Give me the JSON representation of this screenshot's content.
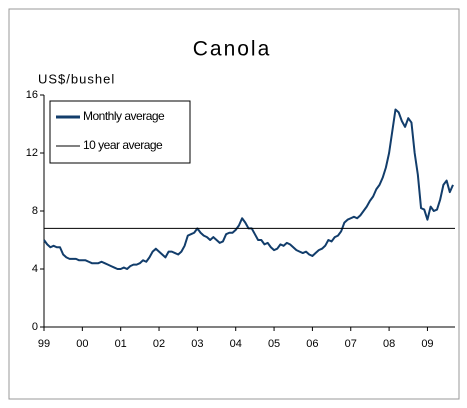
{
  "chart_data": {
    "type": "line",
    "title": "Canola",
    "y_label": "US$/bushel",
    "categories": [
      "99",
      null,
      null,
      null,
      null,
      null,
      null,
      null,
      null,
      null,
      null,
      null,
      "00",
      null,
      null,
      null,
      null,
      null,
      null,
      null,
      null,
      null,
      null,
      null,
      "01",
      null,
      null,
      null,
      null,
      null,
      null,
      null,
      null,
      null,
      null,
      null,
      "02",
      null,
      null,
      null,
      null,
      null,
      null,
      null,
      null,
      null,
      null,
      null,
      "03",
      null,
      null,
      null,
      null,
      null,
      null,
      null,
      null,
      null,
      null,
      null,
      "04",
      null,
      null,
      null,
      null,
      null,
      null,
      null,
      null,
      null,
      null,
      null,
      "05",
      null,
      null,
      null,
      null,
      null,
      null,
      null,
      null,
      null,
      null,
      null,
      "06",
      null,
      null,
      null,
      null,
      null,
      null,
      null,
      null,
      null,
      null,
      null,
      "07",
      null,
      null,
      null,
      null,
      null,
      null,
      null,
      null,
      null,
      null,
      null,
      "08",
      null,
      null,
      null,
      null,
      null,
      null,
      null,
      null,
      null,
      null,
      null,
      "09",
      null,
      null,
      null,
      null,
      null,
      null,
      null,
      null
    ],
    "series": [
      {
        "name": "Monthly average",
        "color": "#123d6b",
        "values": [
          6.0,
          5.7,
          5.5,
          5.6,
          5.5,
          5.5,
          5.0,
          4.8,
          4.7,
          4.7,
          4.7,
          4.6,
          4.6,
          4.6,
          4.5,
          4.4,
          4.4,
          4.4,
          4.5,
          4.4,
          4.3,
          4.2,
          4.1,
          4.0,
          4.0,
          4.1,
          4.0,
          4.2,
          4.3,
          4.3,
          4.4,
          4.6,
          4.5,
          4.8,
          5.2,
          5.4,
          5.2,
          5.0,
          4.8,
          5.2,
          5.2,
          5.1,
          5.0,
          5.2,
          5.6,
          6.3,
          6.4,
          6.5,
          6.8,
          6.5,
          6.3,
          6.2,
          6.0,
          6.2,
          6.0,
          5.8,
          5.9,
          6.4,
          6.5,
          6.5,
          6.7,
          7.0,
          7.5,
          7.2,
          6.8,
          6.8,
          6.4,
          6.0,
          6.0,
          5.7,
          5.8,
          5.5,
          5.3,
          5.4,
          5.7,
          5.6,
          5.8,
          5.7,
          5.5,
          5.3,
          5.2,
          5.1,
          5.2,
          5.0,
          4.9,
          5.1,
          5.3,
          5.4,
          5.6,
          6.0,
          5.9,
          6.2,
          6.3,
          6.6,
          7.2,
          7.4,
          7.5,
          7.6,
          7.5,
          7.7,
          8.0,
          8.3,
          8.7,
          9.0,
          9.5,
          9.8,
          10.3,
          11.0,
          12.0,
          13.5,
          15.0,
          14.8,
          14.2,
          13.8,
          14.4,
          14.1,
          12.0,
          10.5,
          8.2,
          8.1,
          7.4,
          8.3,
          8.0,
          8.1,
          8.8,
          9.8,
          10.1,
          9.3,
          9.8
        ]
      }
    ],
    "average": {
      "name": "10 year average",
      "value": 6.8,
      "color": "#000000"
    },
    "ylim": [
      0,
      16
    ],
    "yticks": [
      0,
      4,
      8,
      12,
      16
    ]
  }
}
